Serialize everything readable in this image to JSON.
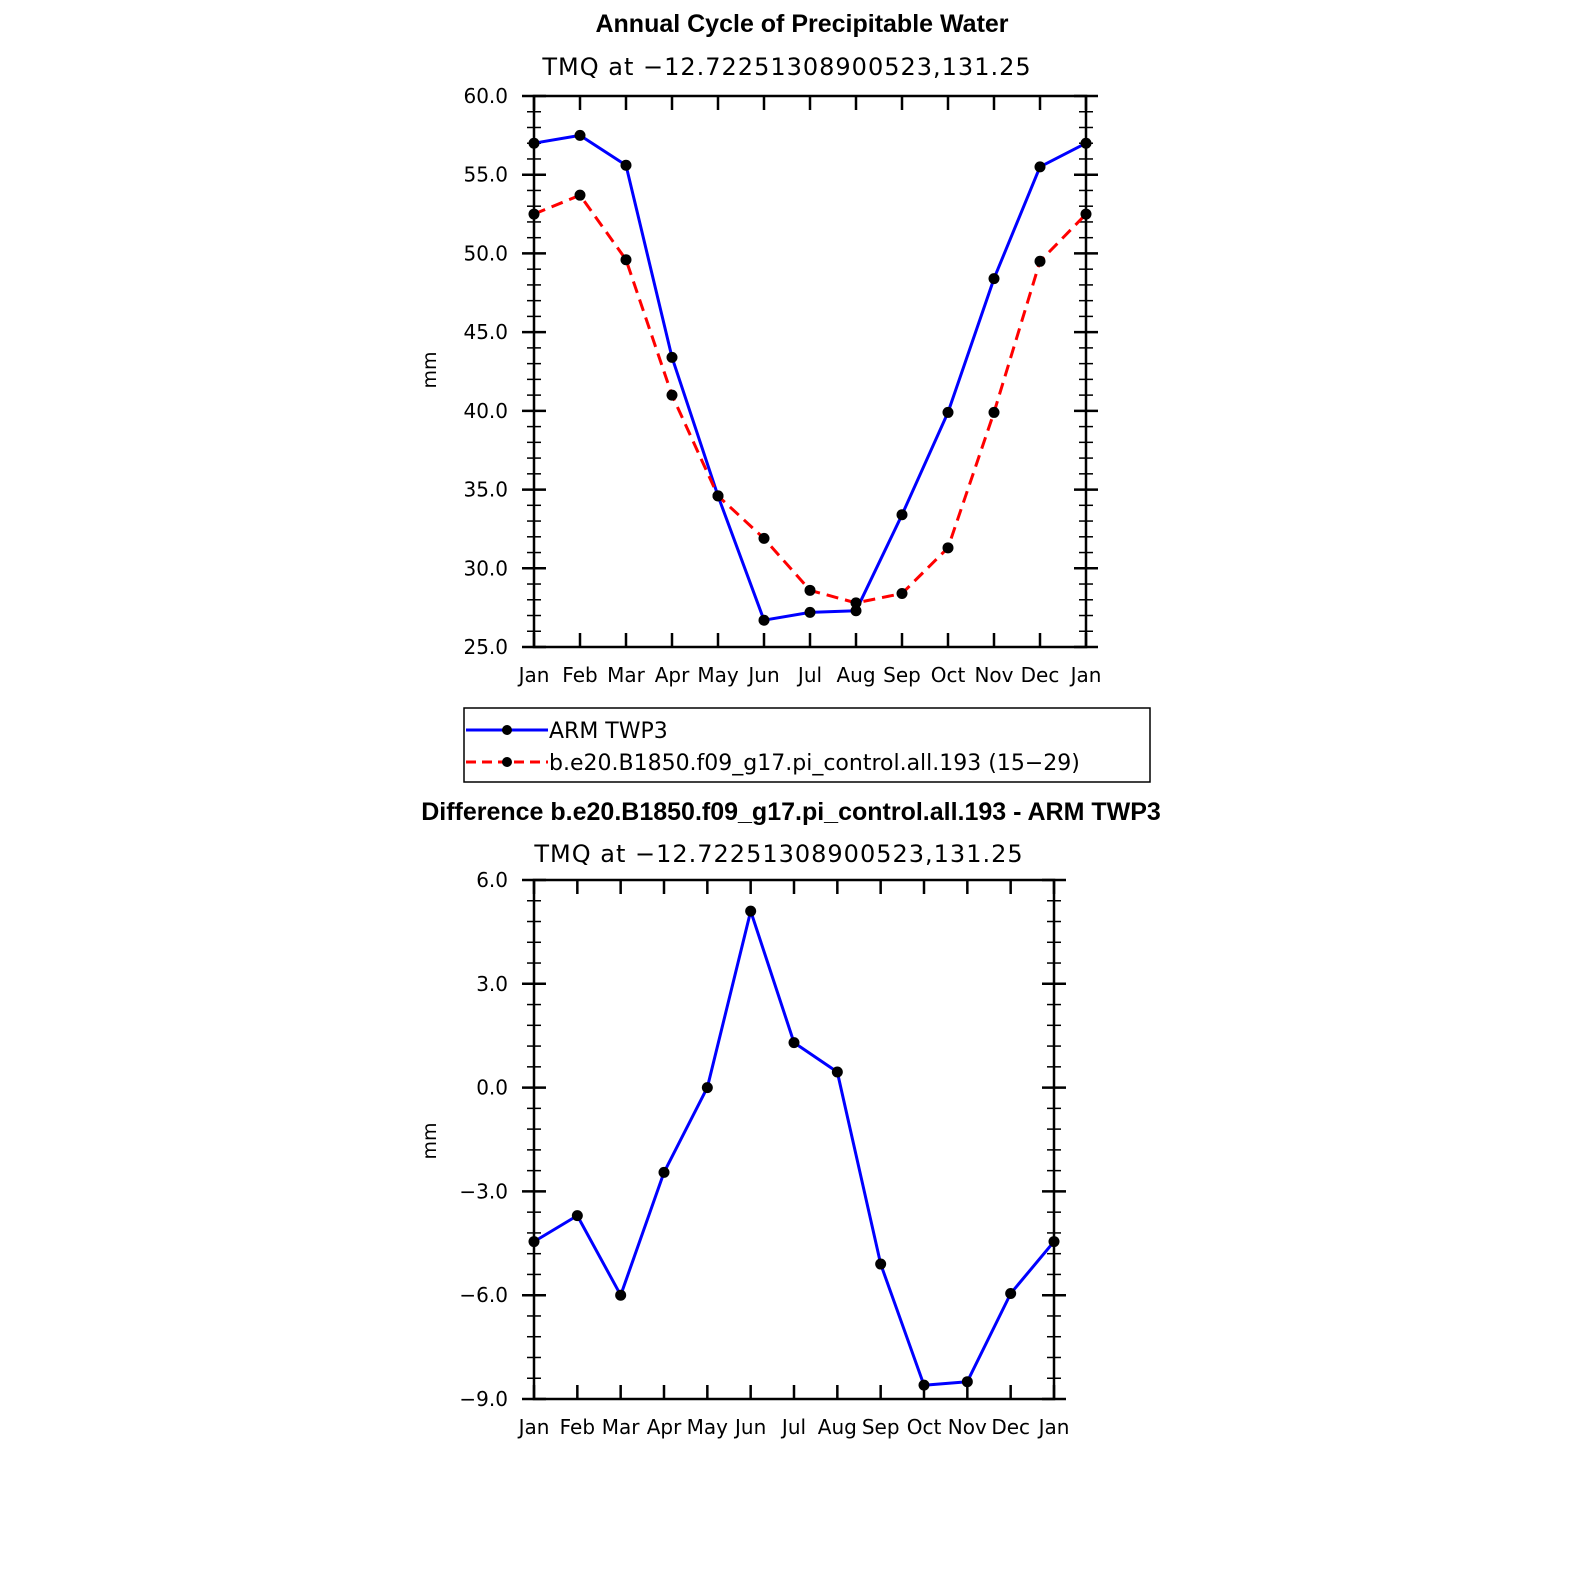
{
  "chart_data": [
    {
      "type": "line",
      "title": "Annual Cycle of Precipitable Water",
      "subtitle": "TMQ at −12.72251308900523,131.25",
      "ylabel": "mm",
      "xlabel": "",
      "categories": [
        "Jan",
        "Feb",
        "Mar",
        "Apr",
        "May",
        "Jun",
        "Jul",
        "Aug",
        "Sep",
        "Oct",
        "Nov",
        "Dec",
        "Jan"
      ],
      "ylim": [
        25.0,
        60.0
      ],
      "yticks": [
        "25.0",
        "30.0",
        "35.0",
        "40.0",
        "45.0",
        "50.0",
        "55.0",
        "60.0"
      ],
      "ytick_values": [
        25,
        30,
        35,
        40,
        45,
        50,
        55,
        60
      ],
      "grid": false,
      "legend_position": "bottom",
      "series": [
        {
          "name": "ARM TWP3",
          "color": "#0000ff",
          "dash": "solid",
          "values": [
            57.0,
            57.5,
            55.6,
            43.4,
            34.6,
            26.7,
            27.2,
            27.3,
            33.4,
            39.9,
            48.4,
            55.5,
            57.0
          ]
        },
        {
          "name": "b.e20.B1850.f09_g17.pi_control.all.193 (15−29)",
          "color": "#ff0000",
          "dash": "dashed",
          "values": [
            52.5,
            53.7,
            49.6,
            41.0,
            34.6,
            31.9,
            28.6,
            27.8,
            28.4,
            31.3,
            39.9,
            49.5,
            52.5
          ]
        }
      ]
    },
    {
      "type": "line",
      "title": "Difference b.e20.B1850.f09_g17.pi_control.all.193 - ARM TWP3",
      "subtitle": "TMQ at −12.72251308900523,131.25",
      "ylabel": "mm",
      "xlabel": "",
      "categories": [
        "Jan",
        "Feb",
        "Mar",
        "Apr",
        "May",
        "Jun",
        "Jul",
        "Aug",
        "Sep",
        "Oct",
        "Nov",
        "Dec",
        "Jan"
      ],
      "ylim": [
        -9.0,
        6.0
      ],
      "yticks": [
        "−9.0",
        "−6.0",
        "−3.0",
        "0.0",
        "3.0",
        "6.0"
      ],
      "ytick_values": [
        -9,
        -6,
        -3,
        0,
        3,
        6
      ],
      "grid": false,
      "series": [
        {
          "color": "#0000ff",
          "dash": "solid",
          "values": [
            -4.45,
            -3.7,
            -6.0,
            -2.45,
            0.0,
            5.1,
            1.3,
            0.45,
            -5.1,
            -8.6,
            -8.5,
            -5.95,
            -4.45
          ]
        }
      ]
    }
  ]
}
